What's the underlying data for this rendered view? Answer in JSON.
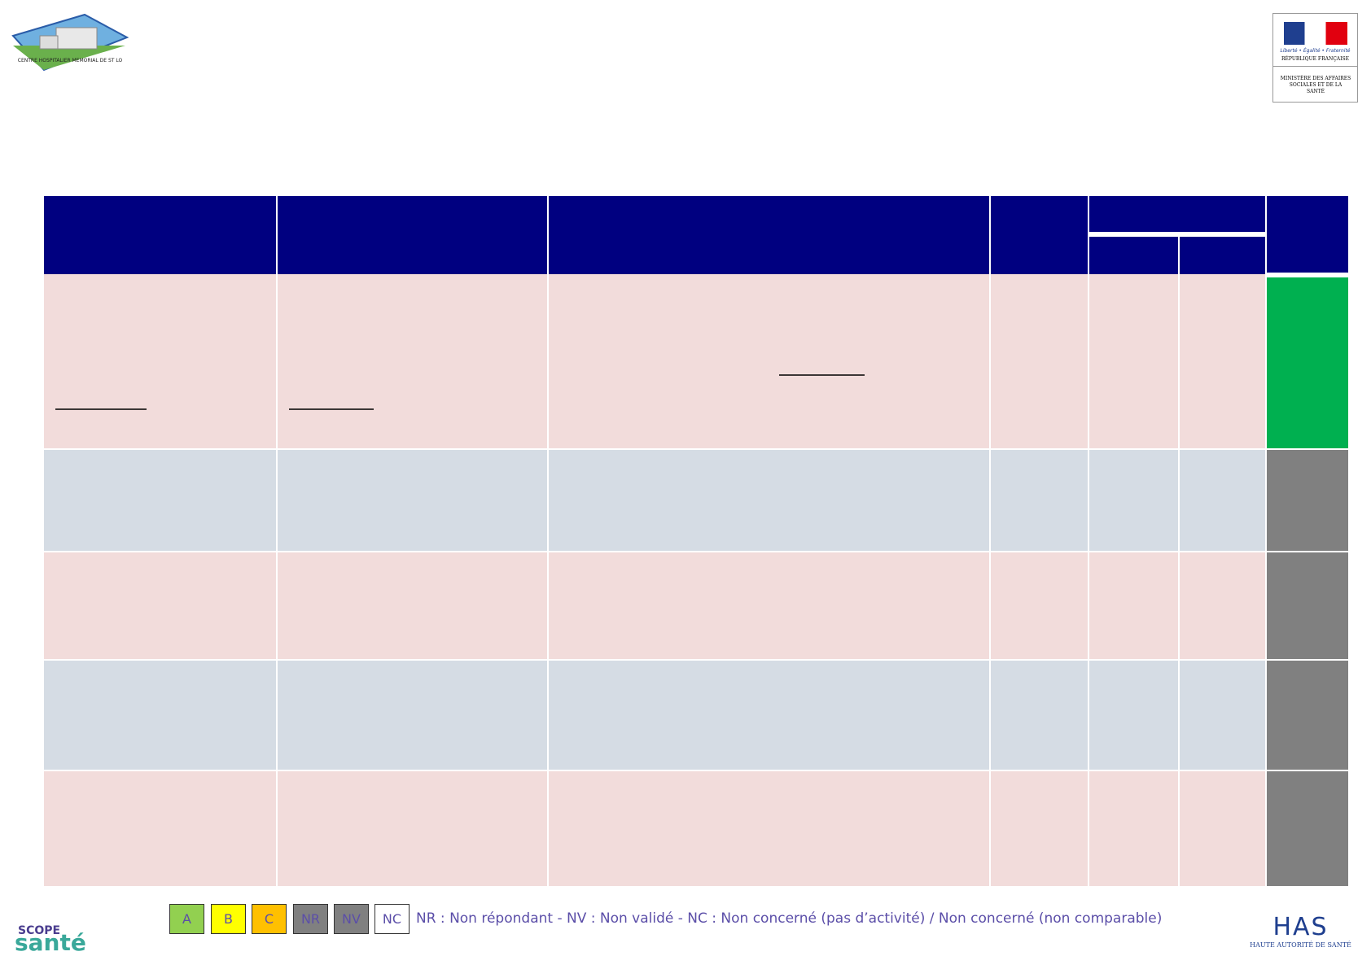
{
  "header": {
    "hospital_logo": "CENTRE HOSPITALIER MEMORIAL DE ST LO",
    "ministry": {
      "motto": "Liberté • Égalité • Fraternité",
      "republic": "RÉPUBLIQUE FRANÇAISE",
      "name": "MINISTÈRE DES AFFAIRES SOCIALES ET DE LA SANTÉ"
    }
  },
  "footer": {
    "scope_logo": {
      "scope": "SCOPE",
      "sante": "santé"
    },
    "legend": [
      "A",
      "B",
      "C",
      "NR",
      "NV",
      "NC"
    ],
    "legend_text": "NR : Non répondant - NV : Non validé - NC : Non concerné (pas d’activité) / Non concerné (non comparable)",
    "has_logo": {
      "acronym": "HAS",
      "name": "HAUTE AUTORITÉ DE SANTÉ"
    }
  }
}
